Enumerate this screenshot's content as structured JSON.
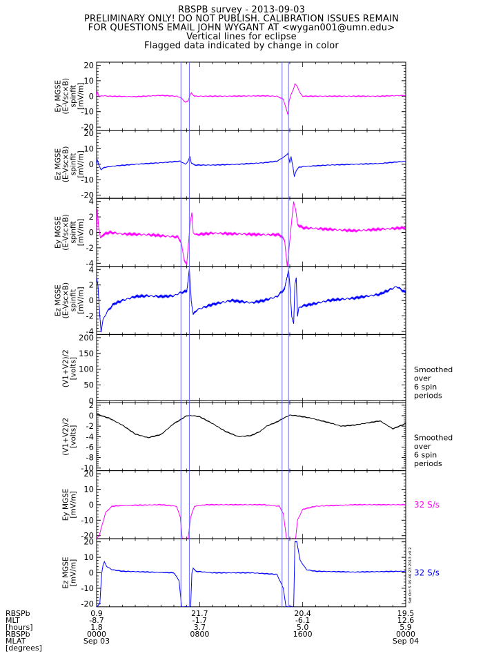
{
  "title_lines": [
    "RBSPB survey - 2013-09-03",
    "PRELIMINARY ONLY! DO NOT PUBLISH. CALIBRATION ISSUES REMAIN",
    "FOR QUESTIONS EMAIL JOHN WYGANT AT <wygan001@umn.edu>",
    "Vertical lines for eclipse",
    "Flagged data indicated by change in color"
  ],
  "colors": {
    "magenta": "#ff00ff",
    "blue": "#0000ff",
    "black": "#000000",
    "eclipse": "#6666ff"
  },
  "chart_data": {
    "type": "line",
    "x_range_hours": [
      0,
      24
    ],
    "eclipse_lines_hours": [
      6.55,
      7.2,
      14.4,
      14.9
    ],
    "panels": [
      {
        "ylabel": [
          "Ey MGSE",
          "(E-Vsc×B)",
          "spinfit",
          "[mV/m]"
        ],
        "yticks": [
          20,
          10,
          0,
          -10,
          -20
        ],
        "ylim": [
          -22,
          22
        ],
        "color": "magenta",
        "side_label": [],
        "series": [
          [
            0,
            0
          ],
          [
            0.05,
            3
          ],
          [
            0.2,
            -0.5
          ],
          [
            0.4,
            0.3
          ],
          [
            1,
            0
          ],
          [
            3,
            -0.3
          ],
          [
            5,
            0.5
          ],
          [
            6.2,
            0
          ],
          [
            6.55,
            -1
          ],
          [
            6.9,
            -4
          ],
          [
            7.1,
            -3
          ],
          [
            7.25,
            0.5
          ],
          [
            7.35,
            2
          ],
          [
            7.6,
            0
          ],
          [
            10,
            0
          ],
          [
            13,
            0.2
          ],
          [
            14,
            0
          ],
          [
            14.5,
            -2
          ],
          [
            14.75,
            -9
          ],
          [
            14.85,
            -12
          ],
          [
            14.95,
            -3
          ],
          [
            15.1,
            1
          ],
          [
            15.3,
            5
          ],
          [
            15.4,
            8
          ],
          [
            15.6,
            6
          ],
          [
            15.8,
            2
          ],
          [
            16,
            0
          ],
          [
            18,
            0
          ],
          [
            20,
            0
          ],
          [
            22,
            0
          ],
          [
            24,
            0.5
          ]
        ]
      },
      {
        "ylabel": [
          "Ez MGSE",
          "(E-Vsc×B)",
          "spinfit",
          "[mV/m]"
        ],
        "yticks": [
          20,
          10,
          0,
          -10,
          -20
        ],
        "ylim": [
          -22,
          22
        ],
        "color": "blue",
        "side_label": [],
        "series": [
          [
            0,
            0
          ],
          [
            0.05,
            3
          ],
          [
            0.15,
            0
          ],
          [
            0.35,
            -3.5
          ],
          [
            0.6,
            -2
          ],
          [
            1.5,
            -1
          ],
          [
            3,
            0
          ],
          [
            5,
            1
          ],
          [
            6.5,
            2
          ],
          [
            6.9,
            0
          ],
          [
            7.1,
            2
          ],
          [
            7.25,
            5
          ],
          [
            7.35,
            1
          ],
          [
            7.6,
            -0.5
          ],
          [
            9,
            -0.5
          ],
          [
            11,
            0
          ],
          [
            13,
            1
          ],
          [
            14,
            2
          ],
          [
            14.6,
            5
          ],
          [
            14.85,
            7
          ],
          [
            15.0,
            1
          ],
          [
            15.1,
            5
          ],
          [
            15.25,
            -2
          ],
          [
            15.35,
            -8
          ],
          [
            15.5,
            -4
          ],
          [
            15.7,
            -2
          ],
          [
            16,
            -1.5
          ],
          [
            18,
            -0.5
          ],
          [
            20,
            0
          ],
          [
            22,
            0.5
          ],
          [
            24,
            2
          ]
        ]
      },
      {
        "ylabel": [
          "Ey MGSE",
          "(E-Vsc×B)",
          "spinfit",
          "[mV/m]"
        ],
        "yticks": [
          4,
          2,
          0,
          -2,
          -4
        ],
        "ylim": [
          -4.4,
          4.4
        ],
        "color": "magenta",
        "side_label": [],
        "series": [
          [
            0,
            0
          ],
          [
            0.05,
            3
          ],
          [
            0.15,
            1
          ],
          [
            0.3,
            -0.8
          ],
          [
            0.5,
            -0.3
          ],
          [
            1,
            0
          ],
          [
            2,
            -0.2
          ],
          [
            4,
            -0.3
          ],
          [
            5.5,
            -0.5
          ],
          [
            6.3,
            -0.6
          ],
          [
            6.55,
            -1.2
          ],
          [
            6.8,
            -3.5
          ],
          [
            7.0,
            -4.2
          ],
          [
            7.15,
            -1
          ],
          [
            7.25,
            1
          ],
          [
            7.4,
            2.5
          ],
          [
            7.5,
            0
          ],
          [
            7.7,
            -0.3
          ],
          [
            9,
            -0.1
          ],
          [
            11,
            -0.2
          ],
          [
            13,
            -0.3
          ],
          [
            14.2,
            -0.3
          ],
          [
            14.6,
            -1
          ],
          [
            14.8,
            -4.5
          ],
          [
            15.0,
            -1
          ],
          [
            15.3,
            4
          ],
          [
            15.45,
            3
          ],
          [
            15.6,
            1
          ],
          [
            16,
            0.6
          ],
          [
            18,
            0.4
          ],
          [
            20,
            0.2
          ],
          [
            22,
            0.4
          ],
          [
            24,
            0.6
          ]
        ]
      },
      {
        "ylabel": [
          "Ez MGSE",
          "(E-Vsc×B)",
          "spinfit",
          "[mV/m]"
        ],
        "yticks": [
          4,
          2,
          0,
          -2,
          -4
        ],
        "ylim": [
          -4.4,
          4.4
        ],
        "color": "blue",
        "side_label": [],
        "series": [
          [
            0,
            3
          ],
          [
            0.1,
            2
          ],
          [
            0.25,
            -2
          ],
          [
            0.35,
            -4
          ],
          [
            0.5,
            -2.5
          ],
          [
            0.8,
            -1.5
          ],
          [
            1.3,
            -0.5
          ],
          [
            2,
            0
          ],
          [
            3,
            0.5
          ],
          [
            4,
            0.6
          ],
          [
            5,
            0.5
          ],
          [
            6,
            0.6
          ],
          [
            6.5,
            1
          ],
          [
            7.0,
            1.2
          ],
          [
            7.2,
            4
          ],
          [
            7.35,
            0
          ],
          [
            7.5,
            -1.8
          ],
          [
            7.8,
            -1.2
          ],
          [
            9,
            -0.5
          ],
          [
            10.5,
            0
          ],
          [
            12,
            -0.3
          ],
          [
            13,
            0
          ],
          [
            14,
            0.5
          ],
          [
            14.6,
            1.5
          ],
          [
            14.9,
            4
          ],
          [
            15.0,
            2
          ],
          [
            15.15,
            -2
          ],
          [
            15.3,
            -3
          ],
          [
            15.4,
            2
          ],
          [
            15.5,
            3
          ],
          [
            15.6,
            -2
          ],
          [
            15.7,
            -1
          ],
          [
            16,
            -0.7
          ],
          [
            17,
            -0.4
          ],
          [
            18,
            0
          ],
          [
            20,
            0.3
          ],
          [
            22,
            0.8
          ],
          [
            23.3,
            1.8
          ],
          [
            24,
            1
          ]
        ]
      },
      {
        "ylabel": [
          "(V1+V2)/2",
          "[volts]"
        ],
        "yticks": [
          200,
          150,
          100,
          50,
          0
        ],
        "ylim": [
          -6,
          210
        ],
        "color": "black",
        "side_label": [
          "Smoothed",
          "over",
          "6 spin",
          "periods"
        ],
        "series": [
          [
            0,
            0
          ],
          [
            6,
            0
          ],
          [
            7,
            0
          ],
          [
            12,
            0
          ],
          [
            15,
            0
          ],
          [
            20,
            0
          ],
          [
            24,
            0
          ]
        ]
      },
      {
        "ylabel": [
          "(V1+V2)/2",
          "[volts]"
        ],
        "yticks": [
          2,
          0,
          -2,
          -4,
          -6,
          -8,
          -10
        ],
        "ylim": [
          -10.5,
          2.5
        ],
        "color": "black",
        "side_label": [
          "Smoothed",
          "over",
          "6 spin",
          "periods"
        ],
        "series": [
          [
            0,
            0.3
          ],
          [
            1,
            -0.5
          ],
          [
            2,
            -1.8
          ],
          [
            3,
            -3.5
          ],
          [
            4,
            -4.2
          ],
          [
            5,
            -3.6
          ],
          [
            6,
            -1.5
          ],
          [
            6.5,
            -0.8
          ],
          [
            7,
            0
          ],
          [
            7.5,
            0
          ],
          [
            8,
            -0.2
          ],
          [
            9,
            -1.5
          ],
          [
            10,
            -3
          ],
          [
            11,
            -4
          ],
          [
            12,
            -3.8
          ],
          [
            12.7,
            -3
          ],
          [
            13.2,
            -2
          ],
          [
            14,
            -1.2
          ],
          [
            14.5,
            -0.5
          ],
          [
            15,
            0.1
          ],
          [
            15.5,
            0
          ],
          [
            16.5,
            -0.4
          ],
          [
            18,
            -1.3
          ],
          [
            19,
            -2
          ],
          [
            20,
            -1.8
          ],
          [
            22,
            -1
          ],
          [
            23,
            -2.5
          ],
          [
            24,
            -1.5
          ]
        ]
      },
      {
        "ylabel": [
          "Ey MGSE",
          "[mV/m]"
        ],
        "yticks": [
          20,
          10,
          0,
          -10,
          -20
        ],
        "ylim": [
          -22,
          22
        ],
        "color": "magenta",
        "side_label": [
          "32 S/s"
        ],
        "series": [
          [
            0,
            -22
          ],
          [
            0.2,
            -20
          ],
          [
            0.7,
            -5
          ],
          [
            1.2,
            -1
          ],
          [
            2,
            -0.5
          ],
          [
            5,
            0
          ],
          [
            6.2,
            -1
          ],
          [
            6.5,
            -8
          ],
          [
            6.65,
            -22
          ],
          [
            7.1,
            -22
          ],
          [
            7.3,
            -8
          ],
          [
            7.6,
            -1
          ],
          [
            8.5,
            0
          ],
          [
            13,
            0
          ],
          [
            14.2,
            -1
          ],
          [
            14.5,
            -6
          ],
          [
            14.75,
            -22
          ],
          [
            15.45,
            -22
          ],
          [
            15.6,
            -10
          ],
          [
            16,
            -3
          ],
          [
            17,
            -1
          ],
          [
            20,
            0
          ],
          [
            24,
            0
          ]
        ]
      },
      {
        "ylabel": [
          "Ez MGSE",
          "[mV/m]"
        ],
        "yticks": [
          20,
          10,
          0,
          -10,
          -20
        ],
        "ylim": [
          -22,
          22
        ],
        "color": "blue",
        "side_label": [
          "32 S/s"
        ],
        "series": [
          [
            0,
            -22
          ],
          [
            0.25,
            -20
          ],
          [
            0.4,
            0
          ],
          [
            0.5,
            5
          ],
          [
            0.6,
            7
          ],
          [
            0.8,
            4
          ],
          [
            1.2,
            2
          ],
          [
            2,
            1
          ],
          [
            4,
            0.5
          ],
          [
            6,
            0
          ],
          [
            6.4,
            -5
          ],
          [
            6.6,
            -22
          ],
          [
            7.3,
            -22
          ],
          [
            7.4,
            0
          ],
          [
            7.5,
            3
          ],
          [
            7.7,
            1
          ],
          [
            9,
            0
          ],
          [
            12,
            0
          ],
          [
            14,
            -1
          ],
          [
            14.5,
            -10
          ],
          [
            14.7,
            -22
          ],
          [
            15.3,
            -22
          ],
          [
            15.4,
            20
          ],
          [
            15.55,
            20
          ],
          [
            15.8,
            8
          ],
          [
            16.3,
            2
          ],
          [
            17,
            1
          ],
          [
            20,
            0.5
          ],
          [
            24,
            1
          ]
        ]
      }
    ],
    "bottom_labels": {
      "row_labels": [
        "RBSPb",
        "MLT",
        "[hours]",
        "RBSPb",
        "MLAT",
        "[degrees]"
      ],
      "columns": [
        {
          "values": [
            "0.9",
            "-8.7",
            "1.8",
            "0000",
            "Sep 03"
          ]
        },
        {
          "values": [
            "21.7",
            "-1.7",
            "3.7",
            "0800",
            ""
          ]
        },
        {
          "values": [
            "20.4",
            "-6.1",
            "5.0",
            "1600",
            ""
          ]
        },
        {
          "values": [
            "19.5",
            "12.6",
            "5.9",
            "0000",
            "Sep 04"
          ]
        }
      ]
    },
    "side_stamp": "Sat Oct 5 05:46:23 2013 v0.2"
  }
}
